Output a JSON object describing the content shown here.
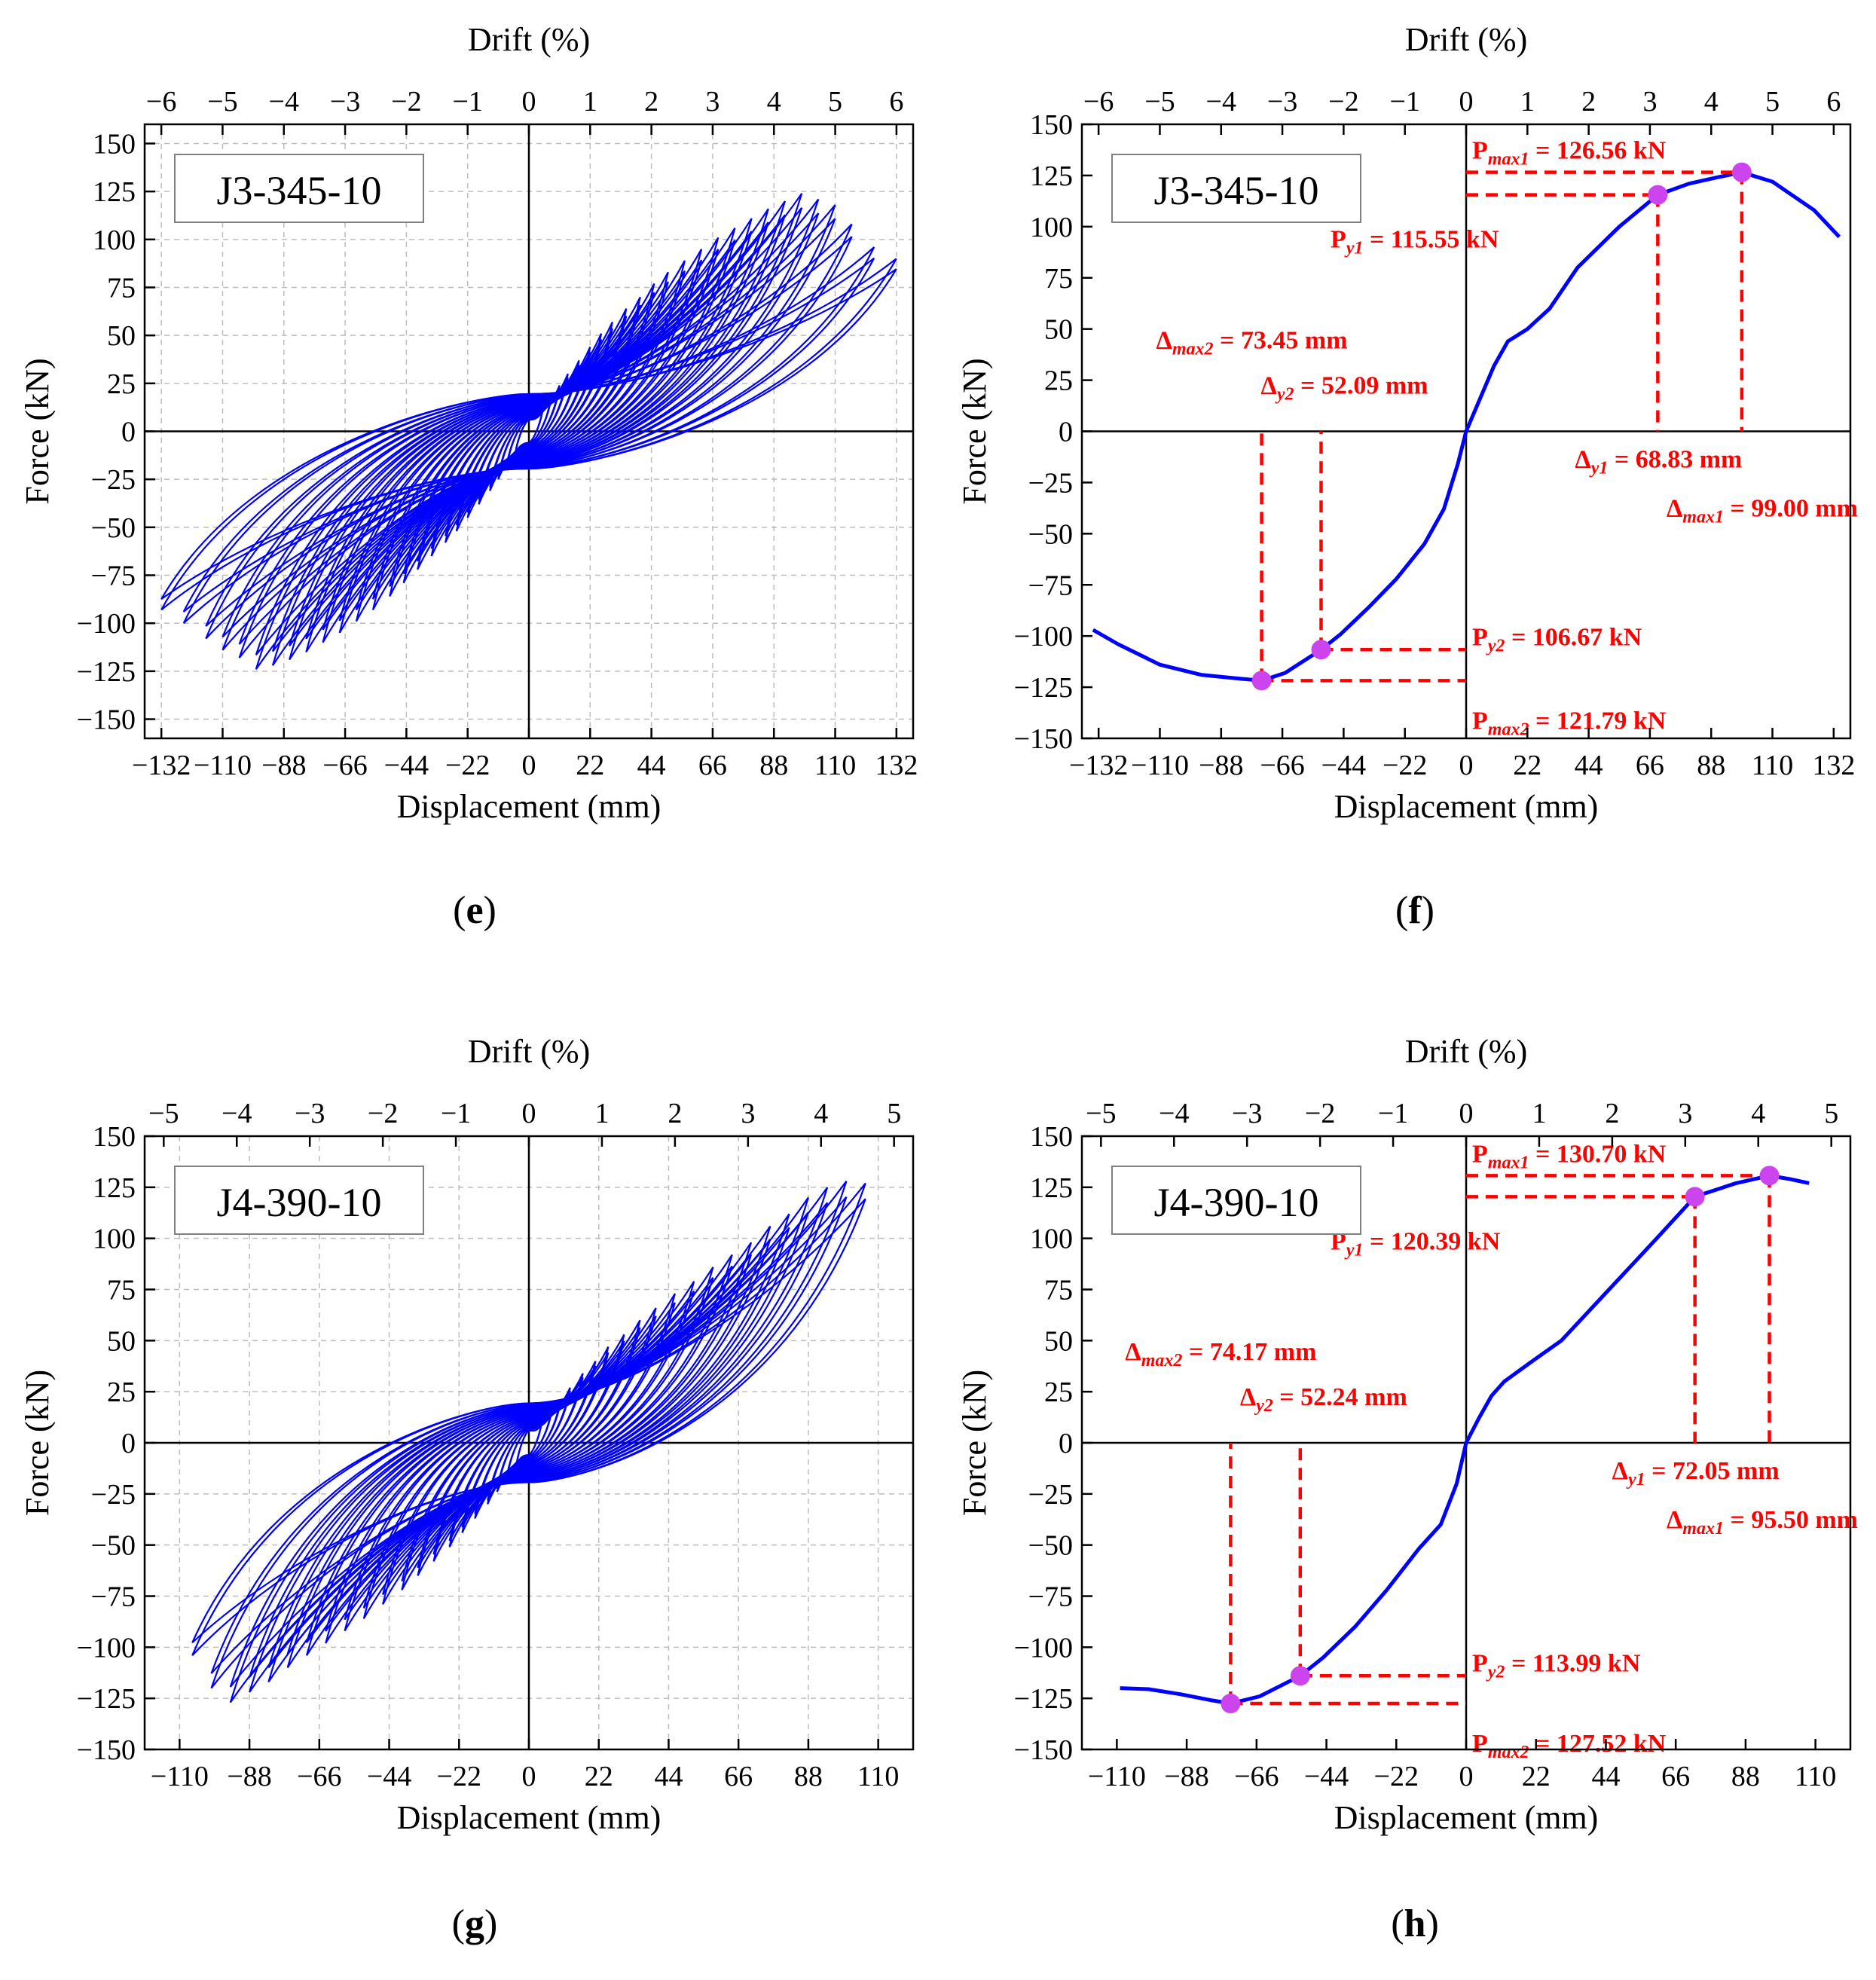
{
  "colors": {
    "curve": "#0000ff",
    "marker": "#cc44ee",
    "annotation": "#ff0000",
    "grid": "#bdbdbd"
  },
  "chart_data": [
    {
      "type": "line",
      "caption": "(e)",
      "label": "J3-345-10",
      "xlabel": "Displacement (mm)",
      "ylabel": "Force (kN)",
      "x2label": "Drift (%)",
      "xlim": [
        -138,
        138
      ],
      "ylim": [
        -160,
        160
      ],
      "xticks": [
        -132,
        -110,
        -88,
        -66,
        -44,
        -22,
        0,
        22,
        44,
        66,
        88,
        110,
        132
      ],
      "yticks": [
        -150,
        -125,
        -100,
        -75,
        -50,
        -25,
        0,
        25,
        50,
        75,
        100,
        125,
        150
      ],
      "x2ticks": [
        -6,
        -5,
        -4,
        -3,
        -2,
        -1,
        0,
        1,
        2,
        3,
        4,
        5,
        6
      ],
      "drift_per_mm": 0.04545,
      "grid": true,
      "series": [
        {
          "style": "hysteresis",
          "x_peaks_pos": [
            5,
            8,
            11,
            14,
            18,
            22,
            26,
            30,
            35,
            40,
            45,
            50,
            56,
            62,
            68,
            74,
            80,
            86,
            92,
            98,
            104,
            110,
            116,
            124,
            132
          ],
          "y_peaks_pos": [
            12,
            18,
            24,
            30,
            37,
            44,
            51,
            57,
            64,
            70,
            77,
            83,
            89,
            95,
            101,
            106,
            111,
            116,
            120,
            124,
            121,
            118,
            108,
            96,
            90
          ],
          "x_peaks_neg": [
            -5,
            -8,
            -11,
            -14,
            -18,
            -22,
            -26,
            -30,
            -35,
            -40,
            -45,
            -50,
            -56,
            -62,
            -68,
            -74,
            -80,
            -86,
            -92,
            -98,
            -104,
            -110,
            -116,
            -124,
            -132
          ],
          "y_peaks_neg": [
            -13,
            -19,
            -25,
            -31,
            -38,
            -45,
            -52,
            -58,
            -65,
            -72,
            -79,
            -86,
            -93,
            -99,
            -105,
            -110,
            -115,
            -119,
            -122,
            -124,
            -118,
            -114,
            -108,
            -100,
            -93
          ]
        }
      ]
    },
    {
      "type": "line",
      "caption": "(f)",
      "label": "J3-345-10",
      "xlabel": "Displacement (mm)",
      "ylabel": "Force (kN)",
      "x2label": "Drift (%)",
      "xlim": [
        -138,
        138
      ],
      "ylim": [
        -150,
        150
      ],
      "xticks": [
        -132,
        -110,
        -88,
        -66,
        -44,
        -22,
        0,
        22,
        44,
        66,
        88,
        110,
        132
      ],
      "yticks": [
        -150,
        -125,
        -100,
        -75,
        -50,
        -25,
        0,
        25,
        50,
        75,
        100,
        125,
        150
      ],
      "x2ticks": [
        -6,
        -5,
        -4,
        -3,
        -2,
        -1,
        0,
        1,
        2,
        3,
        4,
        5,
        6
      ],
      "drift_per_mm": 0.04545,
      "grid": false,
      "series": [
        {
          "style": "skeleton",
          "x": [
            -134,
            -125,
            -110,
            -95,
            -80,
            -73.45,
            -65,
            -52.09,
            -45,
            -35,
            -25,
            -15,
            -8,
            -3,
            0,
            5,
            10,
            15,
            22,
            30,
            40,
            55,
            68.83,
            80,
            90,
            99.0,
            110,
            125,
            134
          ],
          "y": [
            -97,
            -104,
            -114,
            -119,
            -121,
            -121.79,
            -118,
            -106.67,
            -99,
            -86,
            -72,
            -55,
            -38,
            -16,
            0,
            16,
            32,
            44,
            50,
            60,
            80,
            100,
            115.55,
            121,
            124,
            126.56,
            122,
            108,
            95
          ]
        }
      ],
      "points": [
        {
          "x": 68.83,
          "y": 115.55
        },
        {
          "x": 99.0,
          "y": 126.56
        },
        {
          "x": -52.09,
          "y": -106.67
        },
        {
          "x": -73.45,
          "y": -121.79
        }
      ],
      "annotations": {
        "pmax1": {
          "sym": "P",
          "sub": "max1",
          "rest": " = 126.56 kN"
        },
        "py1": {
          "sym": "P",
          "sub": "y1",
          "rest": " = 115.55 kN"
        },
        "dmax2": {
          "sym": "Δ",
          "sub": "max2",
          "rest": " = 73.45 mm"
        },
        "dy2": {
          "sym": "Δ",
          "sub": "y2",
          "rest": " = 52.09 mm"
        },
        "dy1": {
          "sym": "Δ",
          "sub": "y1",
          "rest": " = 68.83 mm"
        },
        "dmax1": {
          "sym": "Δ",
          "sub": "max1",
          "rest": " = 99.00 mm"
        },
        "py2": {
          "sym": "P",
          "sub": "y2",
          "rest": " = 106.67 kN"
        },
        "pmax2": {
          "sym": "P",
          "sub": "max2",
          "rest": " = 121.79 kN"
        }
      }
    },
    {
      "type": "line",
      "caption": "(g)",
      "label": "J4-390-10",
      "xlabel": "Displacement (mm)",
      "ylabel": "Force (kN)",
      "x2label": "Drift (%)",
      "xlim": [
        -121,
        121
      ],
      "ylim": [
        -150,
        150
      ],
      "xticks": [
        -110,
        -88,
        -66,
        -44,
        -22,
        0,
        22,
        44,
        66,
        88,
        110
      ],
      "yticks": [
        -150,
        -125,
        -100,
        -75,
        -50,
        -25,
        0,
        25,
        50,
        75,
        100,
        125,
        150
      ],
      "x2ticks": [
        -5,
        -4,
        -3,
        -2,
        -1,
        0,
        1,
        2,
        3,
        4,
        5
      ],
      "drift_per_mm": 0.04348,
      "grid": true,
      "series": [
        {
          "style": "hysteresis",
          "x_peaks_pos": [
            4,
            7,
            10,
            13,
            17,
            21,
            25,
            30,
            35,
            40,
            46,
            52,
            58,
            64,
            70,
            76,
            82,
            88,
            94,
            100,
            106
          ],
          "y_peaks_pos": [
            10,
            15,
            21,
            27,
            34,
            40,
            47,
            53,
            60,
            66,
            73,
            79,
            86,
            92,
            98,
            106,
            112,
            120,
            125,
            128,
            127
          ],
          "x_peaks_neg": [
            -4,
            -7,
            -10,
            -13,
            -17,
            -21,
            -25,
            -30,
            -35,
            -40,
            -46,
            -52,
            -58,
            -64,
            -70,
            -76,
            -82,
            -88,
            -94,
            -100,
            -106
          ],
          "y_peaks_neg": [
            -12,
            -18,
            -24,
            -30,
            -37,
            -44,
            -51,
            -58,
            -65,
            -72,
            -79,
            -86,
            -92,
            -98,
            -104,
            -110,
            -117,
            -122,
            -127,
            -120,
            -104
          ]
        }
      ]
    },
    {
      "type": "line",
      "caption": "(h)",
      "label": "J4-390-10",
      "xlabel": "Displacement (mm)",
      "ylabel": "Force (kN)",
      "x2label": "Drift (%)",
      "xlim": [
        -121,
        121
      ],
      "ylim": [
        -150,
        150
      ],
      "xticks": [
        -110,
        -88,
        -66,
        -44,
        -22,
        0,
        22,
        44,
        66,
        88,
        110
      ],
      "yticks": [
        -150,
        -125,
        -100,
        -75,
        -50,
        -25,
        0,
        25,
        50,
        75,
        100,
        125,
        150
      ],
      "x2ticks": [
        -5,
        -4,
        -3,
        -2,
        -1,
        0,
        1,
        2,
        3,
        4,
        5
      ],
      "drift_per_mm": 0.04348,
      "grid": false,
      "series": [
        {
          "style": "skeleton",
          "x": [
            -109,
            -100,
            -90,
            -80,
            -74.17,
            -65,
            -52.24,
            -45,
            -35,
            -25,
            -15,
            -8,
            -3,
            0,
            4,
            8,
            12,
            20,
            30,
            45,
            60,
            72.05,
            85,
            95.5,
            102,
            108
          ],
          "y": [
            -120,
            -120.5,
            -123,
            -126,
            -127.52,
            -124,
            -113.99,
            -105,
            -90,
            -72,
            -52,
            -40,
            -20,
            0,
            12,
            23,
            30,
            39,
            50,
            75,
            100,
            120.39,
            127,
            130.7,
            129,
            127
          ]
        }
      ],
      "points": [
        {
          "x": 72.05,
          "y": 120.39
        },
        {
          "x": 95.5,
          "y": 130.7
        },
        {
          "x": -52.24,
          "y": -113.99
        },
        {
          "x": -74.17,
          "y": -127.52
        }
      ],
      "annotations": {
        "pmax1": {
          "sym": "P",
          "sub": "max1",
          "rest": " = 130.70 kN"
        },
        "py1": {
          "sym": "P",
          "sub": "y1",
          "rest": " = 120.39 kN"
        },
        "dmax2": {
          "sym": "Δ",
          "sub": "max2",
          "rest": " = 74.17 mm"
        },
        "dy2": {
          "sym": "Δ",
          "sub": "y2",
          "rest": " = 52.24 mm"
        },
        "dy1": {
          "sym": "Δ",
          "sub": "y1",
          "rest": " = 72.05 mm"
        },
        "dmax1": {
          "sym": "Δ",
          "sub": "max1",
          "rest": " = 95.50 mm"
        },
        "py2": {
          "sym": "P",
          "sub": "y2",
          "rest": " = 113.99 kN"
        },
        "pmax2": {
          "sym": "P",
          "sub": "max2",
          "rest": " = 127.52 kN"
        }
      }
    }
  ]
}
